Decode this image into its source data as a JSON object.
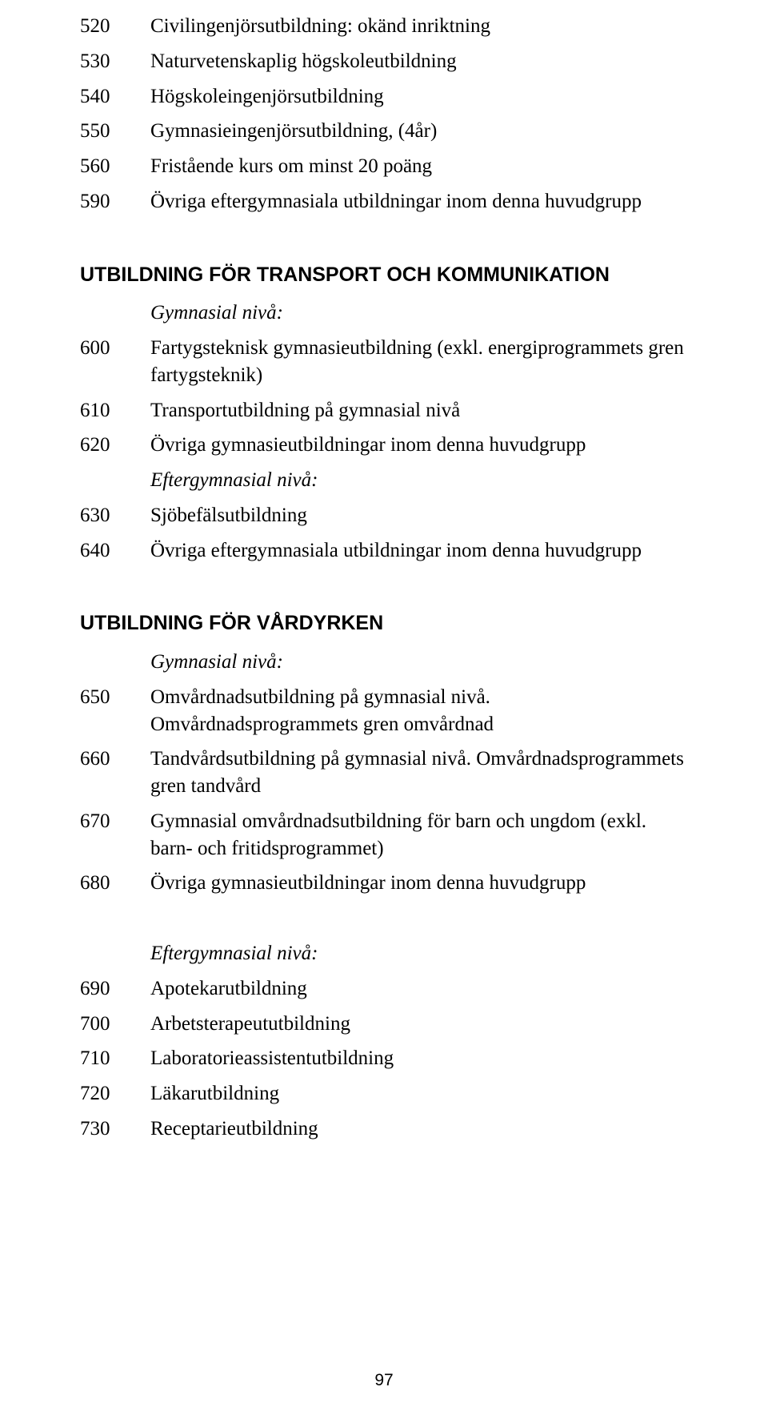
{
  "page_number": "97",
  "top_list": [
    {
      "code": "520",
      "text": "Civilingenjörsutbildning: okänd inriktning"
    },
    {
      "code": "530",
      "text": "Naturvetenskaplig högskoleutbildning"
    },
    {
      "code": "540",
      "text": "Högskoleingenjörsutbildning"
    },
    {
      "code": "550",
      "text": "Gymnasieingenjörsutbildning, (4år)"
    },
    {
      "code": "560",
      "text": "Fristående kurs om minst 20 poäng"
    },
    {
      "code": "590",
      "text": "Övriga eftergymnasiala utbildningar inom denna huvudgrupp"
    }
  ],
  "section_transport": {
    "heading": "UTBILDNING FÖR TRANSPORT OCH KOMMUNIKATION",
    "gym_label": "Gymnasial nivå:",
    "items_gym": [
      {
        "code": "600",
        "text": "Fartygsteknisk gymnasieutbildning (exkl. energiprogrammets gren fartygsteknik)"
      },
      {
        "code": "610",
        "text": "Transportutbildning på gymnasial nivå"
      },
      {
        "code": "620",
        "text": "Övriga gymnasieutbildningar inom denna huvudgrupp"
      }
    ],
    "efter_label": "Eftergymnasial nivå:",
    "items_efter": [
      {
        "code": "630",
        "text": "Sjöbefälsutbildning"
      },
      {
        "code": "640",
        "text": "Övriga eftergymnasiala utbildningar inom denna huvudgrupp"
      }
    ]
  },
  "section_vard": {
    "heading": "UTBILDNING FÖR VÅRDYRKEN",
    "gym_label": "Gymnasial nivå:",
    "items_gym": [
      {
        "code": "650",
        "text": "Omvårdnadsutbildning på gymnasial nivå. Omvårdnadsprogrammets gren omvårdnad"
      },
      {
        "code": "660",
        "text": "Tandvårdsutbildning på gymnasial nivå. Omvårdnadsprogrammets gren tandvård"
      },
      {
        "code": "670",
        "text": "Gymnasial omvårdnadsutbildning för barn och ungdom (exkl. barn- och fritidsprogrammet)"
      },
      {
        "code": "680",
        "text": "Övriga gymnasieutbildningar inom denna huvudgrupp"
      }
    ],
    "efter_label": "Eftergymnasial nivå:",
    "items_efter": [
      {
        "code": "690",
        "text": "Apotekarutbildning"
      },
      {
        "code": "700",
        "text": "Arbetsterapeututbildning"
      },
      {
        "code": "710",
        "text": "Laboratorieassistentutbildning"
      },
      {
        "code": "720",
        "text": "Läkarutbildning"
      },
      {
        "code": "730",
        "text": "Receptarieutbildning"
      }
    ]
  }
}
